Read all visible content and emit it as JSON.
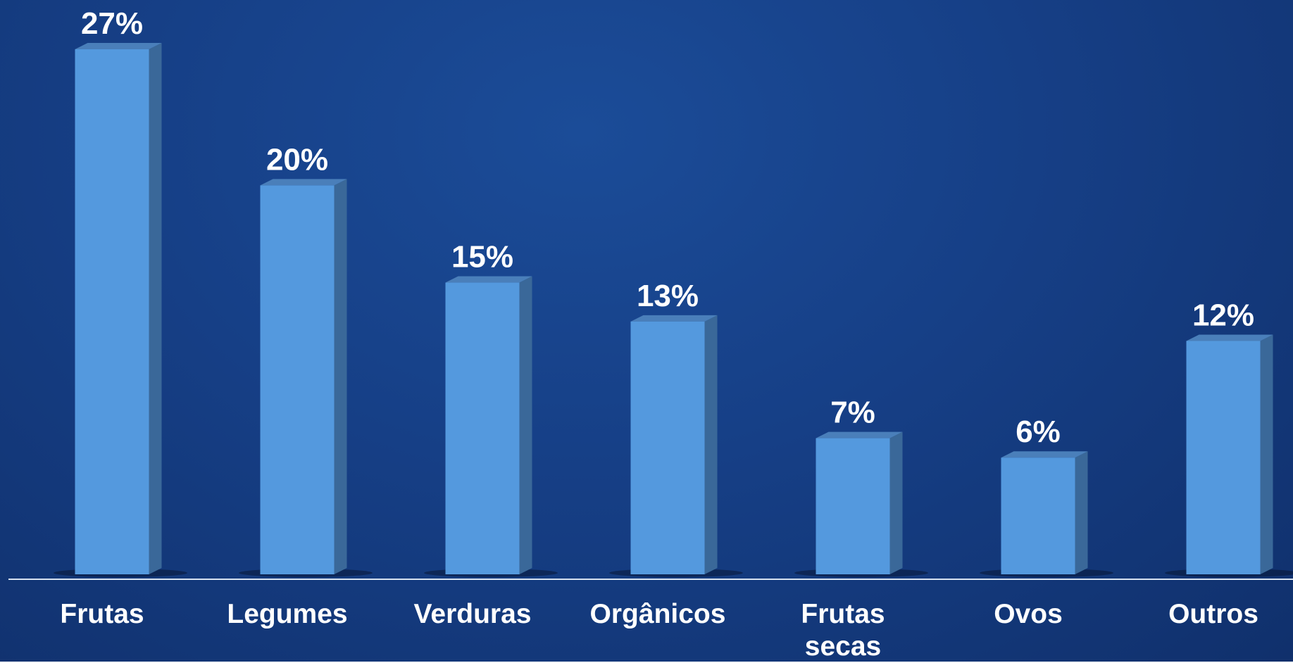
{
  "chart_data": {
    "type": "bar",
    "categories": [
      "Frutas",
      "Legumes",
      "Verduras",
      "Orgânicos",
      "Frutas secas",
      "Ovos",
      "Outros"
    ],
    "values": [
      27,
      20,
      15,
      13,
      7,
      6,
      12
    ],
    "value_labels": [
      "27%",
      "20%",
      "15%",
      "13%",
      "7%",
      "6%",
      "12%"
    ],
    "color": "#5499de"
  }
}
